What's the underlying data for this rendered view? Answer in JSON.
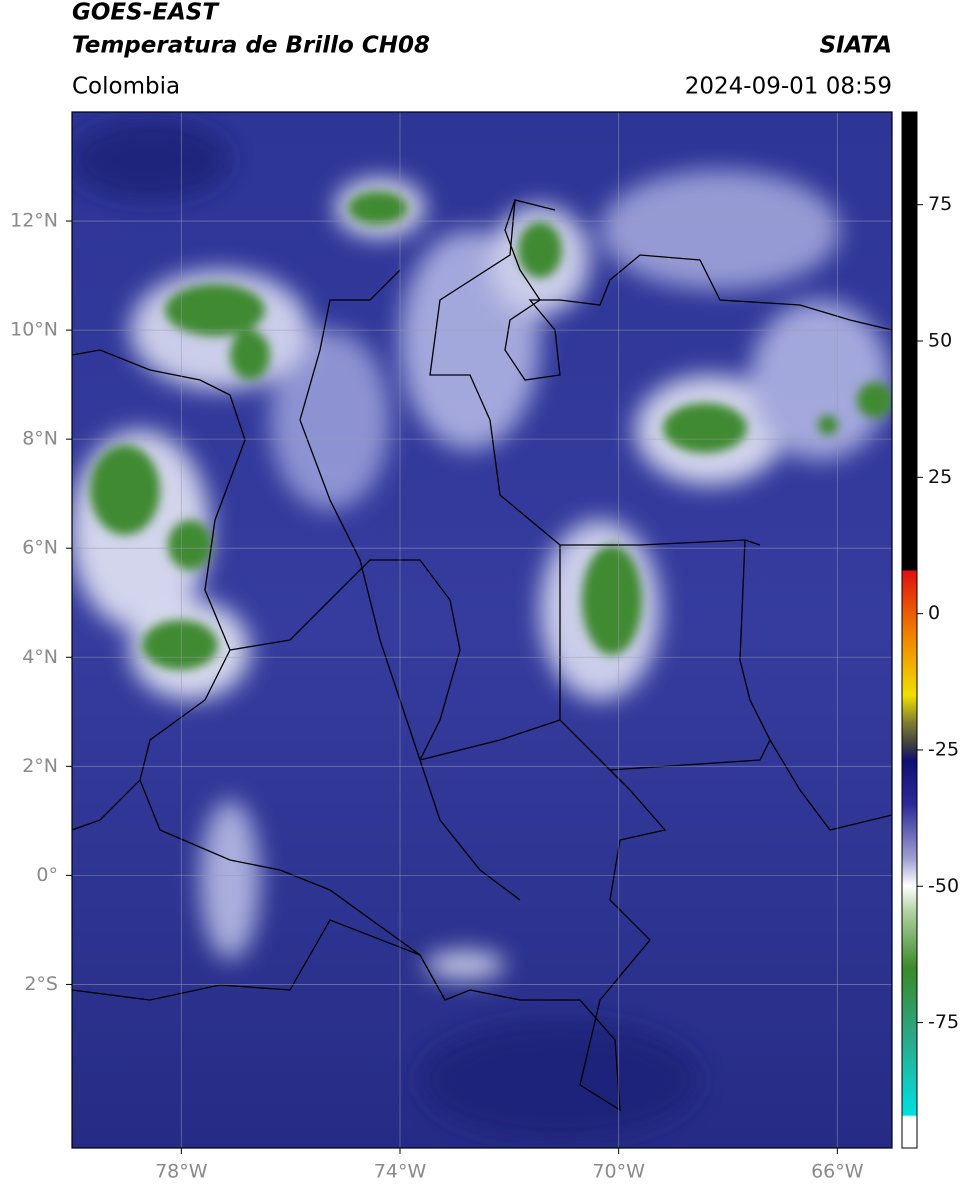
{
  "header": {
    "satellite": "GOES-EAST",
    "product": "Temperatura de Brillo CH08",
    "source": "SIATA",
    "region": "Colombia",
    "datetime": "2024-09-01 08:59"
  },
  "map": {
    "xlim": [
      -80,
      -65
    ],
    "ylim": [
      -5,
      14
    ],
    "xticks": [
      {
        "value": -78,
        "label": "78°W"
      },
      {
        "value": -74,
        "label": "74°W"
      },
      {
        "value": -70,
        "label": "70°W"
      },
      {
        "value": -66,
        "label": "66°W"
      }
    ],
    "yticks": [
      {
        "value": 12,
        "label": "12°N"
      },
      {
        "value": 10,
        "label": "10°N"
      },
      {
        "value": 8,
        "label": "8°N"
      },
      {
        "value": 6,
        "label": "6°N"
      },
      {
        "value": 4,
        "label": "4°N"
      },
      {
        "value": 2,
        "label": "2°N"
      },
      {
        "value": 0,
        "label": "0°"
      },
      {
        "value": -2,
        "label": "2°S"
      }
    ],
    "grid": true
  },
  "colorbar": {
    "lim": [
      -98,
      92
    ],
    "ticks": [
      75,
      50,
      25,
      0,
      -25,
      -50,
      -75
    ]
  }
}
